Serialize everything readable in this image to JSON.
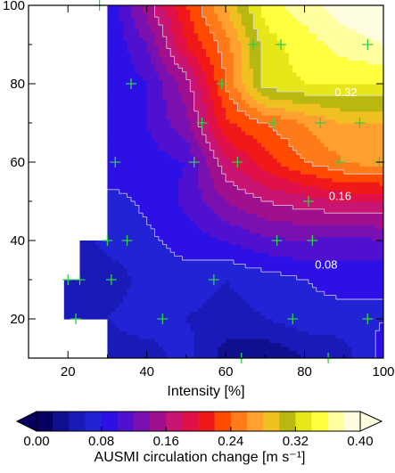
{
  "chart_data": {
    "type": "heatmap",
    "title": "",
    "xlabel": "Intensity [%]",
    "ylabel": "",
    "xlim": [
      10,
      100
    ],
    "ylim": [
      10,
      100
    ],
    "x_ticks": [
      20,
      40,
      60,
      80,
      100
    ],
    "y_ticks": [
      20,
      40,
      60,
      80,
      100
    ],
    "x_tick_labels": [
      "20",
      "40",
      "60",
      "80",
      "100"
    ],
    "y_tick_labels": [
      "20",
      "40",
      "60",
      "80",
      "100"
    ],
    "grid_x": [
      20,
      30,
      40,
      50,
      60,
      70,
      80,
      90,
      100
    ],
    "grid_y": [
      10,
      20,
      30,
      40,
      50,
      60,
      70,
      80,
      90,
      100
    ],
    "z": [
      [
        null,
        0.05,
        0.05,
        0.07,
        0.03,
        0.02,
        0.04,
        0.05,
        0.09
      ],
      [
        0.06,
        0.06,
        0.07,
        0.06,
        0.05,
        0.06,
        0.07,
        0.07,
        0.08
      ],
      [
        0.05,
        0.05,
        0.065,
        0.07,
        0.06,
        0.07,
        0.08,
        0.09,
        0.08
      ],
      [
        0.05,
        0.065,
        0.075,
        0.09,
        0.1,
        0.115,
        0.12,
        0.11,
        0.12
      ],
      [
        null,
        0.07,
        0.085,
        0.105,
        0.14,
        0.16,
        0.17,
        0.18,
        0.18
      ],
      [
        null,
        0.1,
        0.09,
        0.1,
        0.175,
        0.21,
        0.24,
        0.26,
        0.27
      ],
      [
        null,
        0.085,
        0.1,
        0.135,
        0.215,
        0.24,
        0.26,
        0.28,
        0.28
      ],
      [
        null,
        0.08,
        0.1,
        0.15,
        0.24,
        0.33,
        0.34,
        0.34,
        0.34
      ],
      [
        null,
        0.08,
        0.12,
        0.2,
        0.25,
        0.33,
        0.35,
        0.37,
        0.38
      ],
      [
        null,
        0.08,
        0.15,
        0.22,
        0.28,
        0.35,
        0.37,
        0.39,
        0.4
      ]
    ],
    "contour_labels": [
      {
        "text": "0.08",
        "x": 23.5,
        "y": 79
      },
      {
        "text": "0.32",
        "x": 90.5,
        "y": 78
      },
      {
        "text": "0.16",
        "x": 89,
        "y": 51.5
      },
      {
        "text": "0.08",
        "x": 85.5,
        "y": 34
      }
    ],
    "markers": [
      {
        "x": 28,
        "y": 100
      },
      {
        "x": 67,
        "y": 90
      },
      {
        "x": 74,
        "y": 90
      },
      {
        "x": 96,
        "y": 90
      },
      {
        "x": 36,
        "y": 80
      },
      {
        "x": 59,
        "y": 80
      },
      {
        "x": 54,
        "y": 70
      },
      {
        "x": 72,
        "y": 70
      },
      {
        "x": 84,
        "y": 70
      },
      {
        "x": 94,
        "y": 70
      },
      {
        "x": 32,
        "y": 60
      },
      {
        "x": 52,
        "y": 60
      },
      {
        "x": 63,
        "y": 60
      },
      {
        "x": 89,
        "y": 60
      },
      {
        "x": 99,
        "y": 60
      },
      {
        "x": 81,
        "y": 50
      },
      {
        "x": 30,
        "y": 40
      },
      {
        "x": 35,
        "y": 40
      },
      {
        "x": 73,
        "y": 40
      },
      {
        "x": 82,
        "y": 40
      },
      {
        "x": 20,
        "y": 30
      },
      {
        "x": 23,
        "y": 30
      },
      {
        "x": 31,
        "y": 30
      },
      {
        "x": 57,
        "y": 30
      },
      {
        "x": 22,
        "y": 20
      },
      {
        "x": 44,
        "y": 20
      },
      {
        "x": 77,
        "y": 20
      },
      {
        "x": 96,
        "y": 20
      },
      {
        "x": 64,
        "y": 10
      },
      {
        "x": 86,
        "y": 10
      }
    ],
    "marker_color": "#2fd04a",
    "colorbar": {
      "label": "AUSMI circulation change [m s⁻¹]",
      "levels": [
        0.0,
        0.02,
        0.04,
        0.06,
        0.08,
        0.1,
        0.12,
        0.14,
        0.16,
        0.18,
        0.2,
        0.22,
        0.24,
        0.26,
        0.28,
        0.3,
        0.32,
        0.34,
        0.36,
        0.38,
        0.4
      ],
      "tick_labels": [
        "0.00",
        "0.08",
        "0.16",
        "0.24",
        "0.32",
        "0.40"
      ],
      "tick_values": [
        0.0,
        0.08,
        0.16,
        0.24,
        0.32,
        0.4
      ],
      "colors": [
        "#080060",
        "#10108f",
        "#1a1ab8",
        "#2323d6",
        "#2d10e6",
        "#5010d0",
        "#7a10b0",
        "#a0108e",
        "#c81472",
        "#e01048",
        "#f01818",
        "#ff4a00",
        "#ff7a18",
        "#ffa030",
        "#f0c020",
        "#b8b810",
        "#e6e618",
        "#ffff40",
        "#ffffa0",
        "#fffde0"
      ],
      "extend": "max"
    }
  }
}
